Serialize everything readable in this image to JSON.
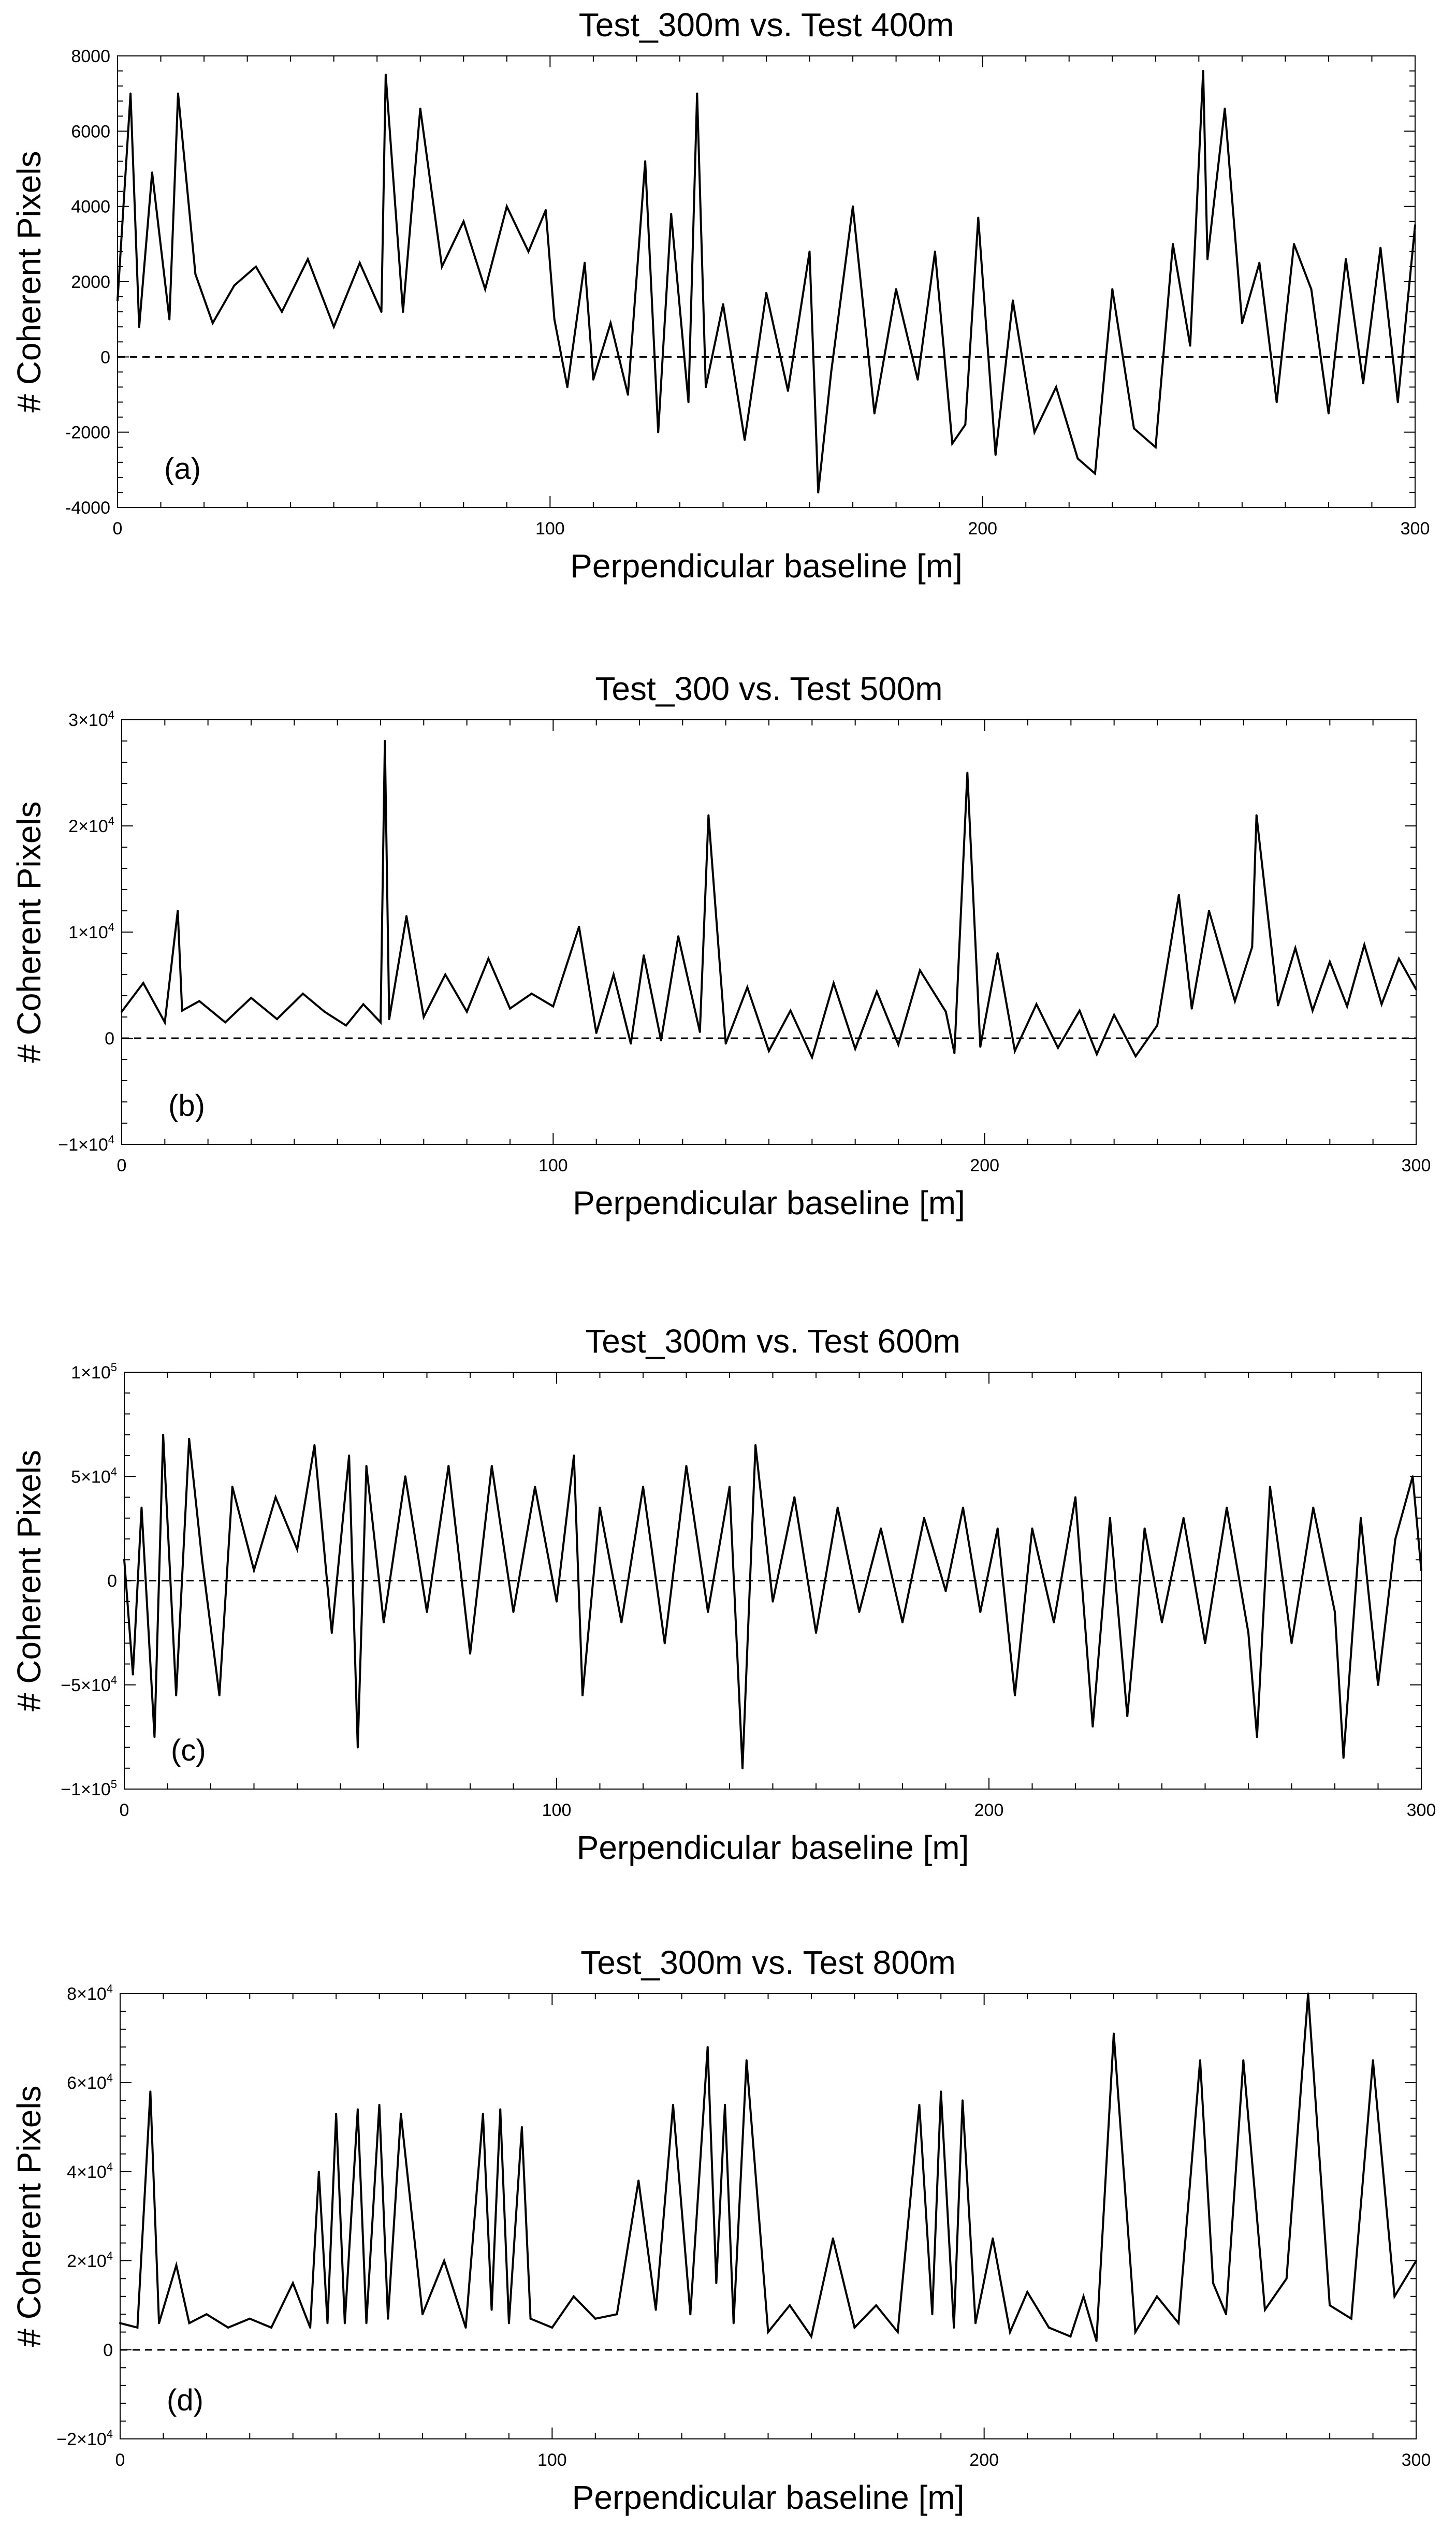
{
  "figure": {
    "description_free": true
  },
  "chart_data": [
    {
      "type": "line",
      "panel_label": "(a)",
      "title": "Test_300m vs. Test 400m",
      "xlabel": "Perpendicular baseline [m]",
      "ylabel": "# Coherent Pixels",
      "xlim": [
        0,
        300
      ],
      "ylim": [
        -4000,
        8000
      ],
      "xticks": [
        0,
        100,
        200,
        300
      ],
      "xtick_labels": [
        "0",
        "100",
        "200",
        "300"
      ],
      "yticks": [
        -4000,
        -2000,
        0,
        2000,
        4000,
        6000,
        8000
      ],
      "ytick_labels": [
        "-4000",
        "-2000",
        "0",
        "2000",
        "4000",
        "6000",
        "8000"
      ],
      "reference_line": {
        "y": 0,
        "style": "dashed"
      },
      "x": [
        0,
        3,
        5,
        8,
        12,
        14,
        18,
        22,
        27,
        32,
        38,
        44,
        50,
        56,
        61,
        62,
        66,
        70,
        75,
        80,
        85,
        90,
        95,
        99,
        101,
        104,
        108,
        110,
        114,
        118,
        122,
        125,
        128,
        132,
        134,
        136,
        140,
        145,
        150,
        155,
        160,
        162,
        165,
        170,
        175,
        180,
        185,
        189,
        193,
        196,
        199,
        203,
        207,
        212,
        217,
        222,
        226,
        230,
        235,
        240,
        244,
        248,
        251,
        252,
        256,
        260,
        264,
        268,
        272,
        276,
        280,
        284,
        288,
        292,
        296,
        300
      ],
      "values": [
        1500,
        7000,
        800,
        4900,
        1000,
        7000,
        2200,
        900,
        1900,
        2400,
        1200,
        2600,
        800,
        2500,
        1200,
        7500,
        1200,
        6600,
        2400,
        3600,
        1800,
        4000,
        2800,
        3900,
        1000,
        -800,
        2500,
        -600,
        900,
        -1000,
        5200,
        -2000,
        3800,
        -1200,
        7000,
        -800,
        1400,
        -2200,
        1700,
        -900,
        2800,
        -3600,
        -400,
        4000,
        -1500,
        1800,
        -600,
        2800,
        -2300,
        -1800,
        3700,
        -2600,
        1500,
        -2000,
        -800,
        -2700,
        -3100,
        1800,
        -1900,
        -2400,
        3000,
        300,
        7600,
        2600,
        6600,
        900,
        2500,
        -1200,
        3000,
        1800,
        -1500,
        2600,
        -700,
        2900,
        -1200,
        3500
      ]
    },
    {
      "type": "line",
      "panel_label": "(b)",
      "title": "Test_300 vs. Test 500m",
      "xlabel": "Perpendicular baseline [m]",
      "ylabel": "# Coherent Pixels",
      "xlim": [
        0,
        300
      ],
      "ylim": [
        -10000,
        30000
      ],
      "xticks": [
        0,
        100,
        200,
        300
      ],
      "xtick_labels": [
        "0",
        "100",
        "200",
        "300"
      ],
      "yticks": [
        -10000,
        0,
        10000,
        20000,
        30000
      ],
      "ytick_labels": [
        {
          "mantissa": "−1",
          "base": "×10",
          "exp": "4"
        },
        {
          "mantissa": "0",
          "base": "",
          "exp": ""
        },
        {
          "mantissa": "1",
          "base": "×10",
          "exp": "4"
        },
        {
          "mantissa": "2",
          "base": "×10",
          "exp": "4"
        },
        {
          "mantissa": "3",
          "base": "×10",
          "exp": "4"
        }
      ],
      "reference_line": {
        "y": 0,
        "style": "dashed"
      },
      "x": [
        0,
        5,
        10,
        13,
        14,
        18,
        24,
        30,
        36,
        42,
        47,
        52,
        56,
        60,
        61,
        62,
        66,
        70,
        75,
        80,
        85,
        90,
        95,
        100,
        106,
        110,
        114,
        118,
        121,
        125,
        129,
        134,
        136,
        140,
        145,
        150,
        155,
        160,
        165,
        170,
        175,
        180,
        185,
        191,
        193,
        196,
        199,
        203,
        207,
        212,
        217,
        222,
        226,
        230,
        235,
        240,
        245,
        248,
        252,
        258,
        262,
        263,
        268,
        272,
        276,
        280,
        284,
        288,
        292,
        296,
        300
      ],
      "values": [
        2500,
        5200,
        1500,
        12000,
        2600,
        3500,
        1500,
        3800,
        1800,
        4200,
        2500,
        1200,
        3200,
        1500,
        28000,
        1800,
        11500,
        2000,
        6000,
        2500,
        7500,
        2800,
        4200,
        3000,
        10500,
        500,
        6000,
        -500,
        7800,
        -200,
        9600,
        600,
        21000,
        -500,
        4800,
        -1200,
        2600,
        -1800,
        5200,
        -1000,
        4400,
        -600,
        6400,
        2500,
        -1400,
        25000,
        -800,
        8000,
        -1200,
        3200,
        -900,
        2600,
        -1500,
        2200,
        -1700,
        1200,
        13500,
        2800,
        12000,
        3500,
        8600,
        21000,
        3100,
        8500,
        2600,
        7200,
        3000,
        8800,
        3200,
        7500,
        4600
      ]
    },
    {
      "type": "line",
      "panel_label": "(c)",
      "title": "Test_300m vs. Test 600m",
      "xlabel": "Perpendicular baseline [m]",
      "ylabel": "# Coherent Pixels",
      "xlim": [
        0,
        300
      ],
      "ylim": [
        -100000,
        100000
      ],
      "xticks": [
        0,
        100,
        200,
        300
      ],
      "xtick_labels": [
        "0",
        "100",
        "200",
        "300"
      ],
      "yticks": [
        -100000,
        -50000,
        0,
        50000,
        100000
      ],
      "ytick_labels": [
        {
          "mantissa": "−1",
          "base": "×10",
          "exp": "5"
        },
        {
          "mantissa": "−5",
          "base": "×10",
          "exp": "4"
        },
        {
          "mantissa": "0",
          "base": "",
          "exp": ""
        },
        {
          "mantissa": "5",
          "base": "×10",
          "exp": "4"
        },
        {
          "mantissa": "1",
          "base": "×10",
          "exp": "5"
        }
      ],
      "reference_line": {
        "y": 0,
        "style": "dashed"
      },
      "x": [
        0,
        2,
        4,
        7,
        9,
        12,
        15,
        18,
        22,
        25,
        30,
        35,
        40,
        44,
        48,
        52,
        54,
        56,
        60,
        65,
        70,
        75,
        80,
        85,
        90,
        95,
        100,
        104,
        106,
        110,
        115,
        120,
        125,
        130,
        135,
        140,
        143,
        146,
        150,
        155,
        160,
        165,
        170,
        175,
        180,
        185,
        190,
        194,
        198,
        202,
        206,
        210,
        215,
        220,
        224,
        228,
        232,
        236,
        240,
        245,
        250,
        255,
        260,
        262,
        265,
        270,
        275,
        280,
        282,
        286,
        290,
        294,
        298,
        300
      ],
      "values": [
        10000,
        -45000,
        35000,
        -75000,
        70000,
        -55000,
        68000,
        10000,
        -55000,
        45000,
        5000,
        40000,
        15000,
        65000,
        -25000,
        60000,
        -80000,
        55000,
        -20000,
        50000,
        -15000,
        55000,
        -35000,
        55000,
        -15000,
        45000,
        -10000,
        60000,
        -55000,
        35000,
        -20000,
        45000,
        -30000,
        55000,
        -15000,
        45000,
        -90000,
        65000,
        -10000,
        40000,
        -25000,
        35000,
        -15000,
        25000,
        -20000,
        30000,
        -5000,
        35000,
        -15000,
        25000,
        -55000,
        25000,
        -20000,
        40000,
        -70000,
        30000,
        -65000,
        25000,
        -20000,
        30000,
        -30000,
        35000,
        -25000,
        -75000,
        45000,
        -30000,
        35000,
        -15000,
        -85000,
        30000,
        -50000,
        20000,
        50000,
        5000
      ]
    },
    {
      "type": "line",
      "panel_label": "(d)",
      "title": "Test_300m vs. Test 800m",
      "xlabel": "Perpendicular baseline [m]",
      "ylabel": "# Coherent Pixels",
      "xlim": [
        0,
        300
      ],
      "ylim": [
        -20000,
        80000
      ],
      "xticks": [
        0,
        100,
        200,
        300
      ],
      "xtick_labels": [
        "0",
        "100",
        "200",
        "300"
      ],
      "yticks": [
        -20000,
        0,
        20000,
        40000,
        60000,
        80000
      ],
      "ytick_labels": [
        {
          "mantissa": "−2",
          "base": "×10",
          "exp": "4"
        },
        {
          "mantissa": "0",
          "base": "",
          "exp": ""
        },
        {
          "mantissa": "2",
          "base": "×10",
          "exp": "4"
        },
        {
          "mantissa": "4",
          "base": "×10",
          "exp": "4"
        },
        {
          "mantissa": "6",
          "base": "×10",
          "exp": "4"
        },
        {
          "mantissa": "8",
          "base": "×10",
          "exp": "4"
        }
      ],
      "reference_line": {
        "y": 0,
        "style": "dashed"
      },
      "x": [
        0,
        4,
        7,
        9,
        13,
        16,
        20,
        25,
        30,
        35,
        40,
        44,
        46,
        48,
        50,
        52,
        55,
        57,
        60,
        62,
        65,
        70,
        75,
        80,
        84,
        86,
        88,
        90,
        93,
        95,
        100,
        105,
        110,
        115,
        120,
        124,
        128,
        132,
        136,
        138,
        140,
        142,
        145,
        150,
        155,
        160,
        165,
        170,
        175,
        180,
        185,
        188,
        190,
        193,
        195,
        198,
        202,
        206,
        210,
        215,
        220,
        223,
        226,
        230,
        235,
        240,
        245,
        250,
        253,
        256,
        260,
        265,
        270,
        275,
        280,
        285,
        290,
        295,
        300
      ],
      "values": [
        6000,
        5000,
        58000,
        6000,
        19000,
        6000,
        8000,
        5000,
        7000,
        5000,
        15000,
        5000,
        40000,
        6000,
        53000,
        6000,
        54000,
        6000,
        55000,
        7000,
        53000,
        8000,
        20000,
        5000,
        53000,
        9000,
        54000,
        6000,
        50000,
        7000,
        5000,
        12000,
        7000,
        8000,
        38000,
        9000,
        55000,
        8000,
        68000,
        15000,
        55000,
        6000,
        65000,
        4000,
        10000,
        3000,
        25000,
        5000,
        10000,
        4000,
        55000,
        8000,
        58000,
        5000,
        56000,
        6000,
        25000,
        4000,
        13000,
        5000,
        3000,
        12000,
        2000,
        71000,
        4000,
        12000,
        6000,
        65000,
        15000,
        8000,
        65000,
        9000,
        16000,
        80000,
        10000,
        7000,
        65000,
        12000,
        20000
      ]
    }
  ]
}
